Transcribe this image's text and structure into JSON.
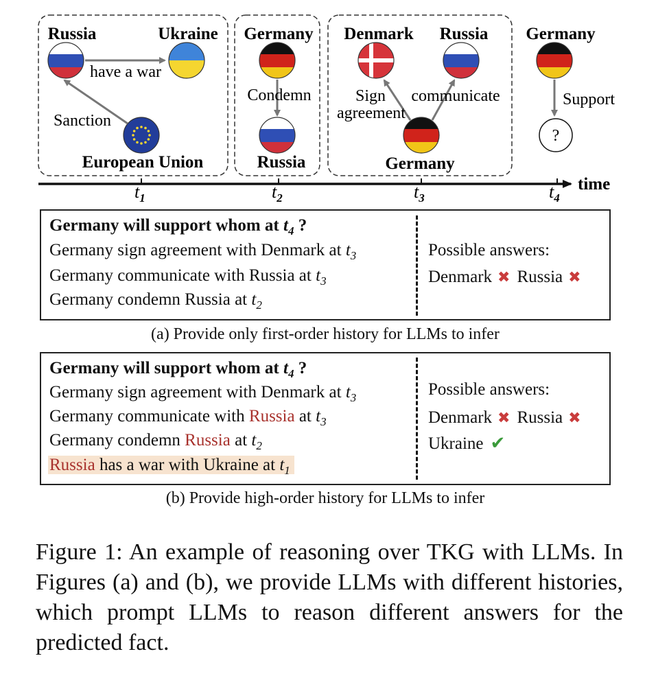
{
  "diagram": {
    "groups": [
      {
        "nodes": [
          "Russia",
          "Ukraine",
          "European Union"
        ],
        "edges": [
          "have a war",
          "Sanction"
        ]
      },
      {
        "nodes": [
          "Germany",
          "Russia"
        ],
        "edges": [
          "Condemn"
        ]
      },
      {
        "nodes": [
          "Denmark",
          "Russia",
          "Germany"
        ],
        "edges_sign": "Sign",
        "edges_sign2": "agreement",
        "edges_comm": "communicate"
      },
      {
        "nodes": [
          "Germany",
          "?"
        ],
        "edges": [
          "Support"
        ]
      }
    ],
    "timeline": {
      "label": "time",
      "ticks": [
        "t",
        "t",
        "t",
        "t"
      ],
      "tick_subs": [
        "1",
        "2",
        "3",
        "4"
      ]
    }
  },
  "panel_a": {
    "question_prefix": "Germany will support whom at ",
    "question_t": "t",
    "question_sub": "4",
    "question_suffix": " ?",
    "lines": [
      {
        "text": "Germany sign agreement with Denmark at ",
        "t": "t",
        "sub": "3"
      },
      {
        "text": "Germany communicate with Russia at ",
        "t": "t",
        "sub": "3"
      },
      {
        "text": "Germany condemn Russia at ",
        "t": "t",
        "sub": "2"
      }
    ],
    "answers_label": "Possible answers:",
    "answers": [
      "Denmark",
      "Russia"
    ],
    "caption": "(a) Provide only first-order history for LLMs to infer"
  },
  "panel_b": {
    "question_prefix": "Germany will support whom at ",
    "question_t": "t",
    "question_sub": "4",
    "question_suffix": " ?",
    "line1": {
      "text": "Germany sign agreement with Denmark at ",
      "t": "t",
      "sub": "3"
    },
    "line2": {
      "pre": "Germany communicate with ",
      "red": "Russia",
      "post": " at ",
      "t": "t",
      "sub": "3"
    },
    "line3": {
      "pre": "Germany condemn ",
      "red": "Russia",
      "post": " at ",
      "t": "t",
      "sub": "2"
    },
    "line4": {
      "red": "Russia",
      "post": " has a war with Ukraine at ",
      "t": "t",
      "sub": "1"
    },
    "answers_label": "Possible answers:",
    "answers": [
      "Denmark",
      "Russia"
    ],
    "answer_correct": "Ukraine",
    "caption": "(b) Provide high-order history for LLMs to infer"
  },
  "figure_caption": "Figure 1:  An example of reasoning over TKG with LLMs. In Figures (a) and (b), we provide LLMs with different histories, which prompt LLMs to reason different answers for the predicted fact.",
  "colors": {
    "accent_red": "#a8322d",
    "highlight": "#f7e3cf",
    "cross": "#c93c3c",
    "check": "#3a9a3a"
  }
}
